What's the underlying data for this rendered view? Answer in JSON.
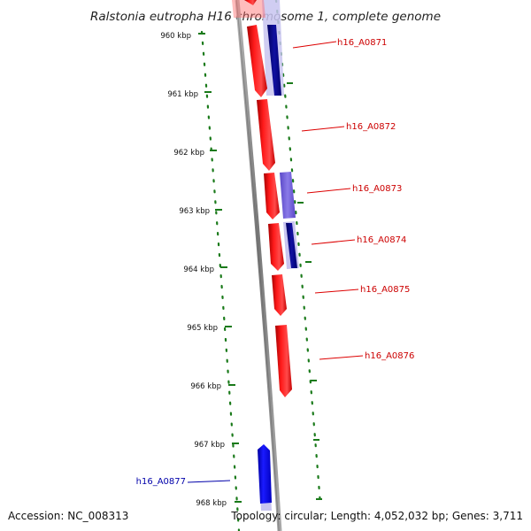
{
  "title": "Ralstonia eutropha H16 chromosome 1, complete genome",
  "accession": "Accession: NC_008313",
  "summary": "Topology: circular; Length: 4,052,032 bp; Genes: 3,711",
  "colors": {
    "forward_gene": "#ff0000",
    "reverse_gene": "#0000ee",
    "gc_skew": "#7060d8",
    "backbone": "#888888",
    "tick": "#1a7a1a",
    "forward_label": "#cc0000",
    "reverse_label": "#0000aa"
  },
  "ticks": [
    "960 kbp",
    "961 kbp",
    "962 kbp",
    "963 kbp",
    "964 kbp",
    "965 kbp",
    "966 kbp",
    "967 kbp",
    "968 kbp"
  ],
  "genes": [
    {
      "id": "h16_A0871",
      "strand": "forward"
    },
    {
      "id": "h16_A0872",
      "strand": "forward"
    },
    {
      "id": "h16_A0873",
      "strand": "forward"
    },
    {
      "id": "h16_A0874",
      "strand": "forward"
    },
    {
      "id": "h16_A0875",
      "strand": "forward"
    },
    {
      "id": "h16_A0876",
      "strand": "forward"
    },
    {
      "id": "h16_A0877",
      "strand": "reverse"
    }
  ]
}
